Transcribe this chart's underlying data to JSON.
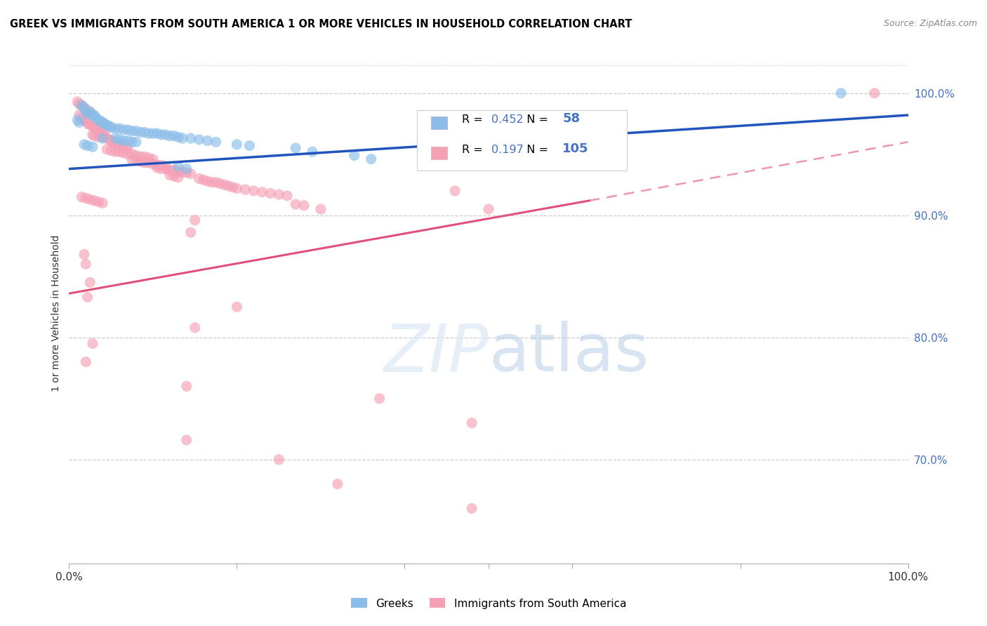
{
  "title": "GREEK VS IMMIGRANTS FROM SOUTH AMERICA 1 OR MORE VEHICLES IN HOUSEHOLD CORRELATION CHART",
  "source": "Source: ZipAtlas.com",
  "ylabel": "1 or more Vehicles in Household",
  "ytick_labels": [
    "100.0%",
    "90.0%",
    "80.0%",
    "70.0%"
  ],
  "ytick_values": [
    1.0,
    0.9,
    0.8,
    0.7
  ],
  "xlim": [
    0.0,
    1.0
  ],
  "ylim": [
    0.615,
    1.025
  ],
  "legend_label_greek": "Greeks",
  "legend_label_sa": "Immigrants from South America",
  "r_greek": 0.452,
  "n_greek": 58,
  "r_sa": 0.197,
  "n_sa": 105,
  "greek_color": "#8BBDE8",
  "sa_color": "#F4A0B5",
  "greek_line_color": "#2255BB",
  "sa_line_color": "#E0507A",
  "greek_line": [
    0.0,
    0.938,
    1.0,
    0.982
  ],
  "sa_line_solid": [
    0.0,
    0.836,
    0.62,
    0.912
  ],
  "sa_line_dash": [
    0.62,
    0.912,
    1.0,
    0.96
  ],
  "greek_scatter": [
    [
      0.015,
      0.99
    ],
    [
      0.018,
      0.988
    ],
    [
      0.02,
      0.985
    ],
    [
      0.022,
      0.983
    ],
    [
      0.025,
      0.985
    ],
    [
      0.028,
      0.982
    ],
    [
      0.03,
      0.982
    ],
    [
      0.032,
      0.98
    ],
    [
      0.035,
      0.978
    ],
    [
      0.01,
      0.978
    ],
    [
      0.012,
      0.976
    ],
    [
      0.038,
      0.977
    ],
    [
      0.04,
      0.976
    ],
    [
      0.042,
      0.975
    ],
    [
      0.045,
      0.974
    ],
    [
      0.048,
      0.973
    ],
    [
      0.05,
      0.972
    ],
    [
      0.055,
      0.971
    ],
    [
      0.06,
      0.971
    ],
    [
      0.065,
      0.97
    ],
    [
      0.07,
      0.97
    ],
    [
      0.075,
      0.969
    ],
    [
      0.08,
      0.969
    ],
    [
      0.085,
      0.968
    ],
    [
      0.09,
      0.968
    ],
    [
      0.095,
      0.967
    ],
    [
      0.1,
      0.967
    ],
    [
      0.105,
      0.967
    ],
    [
      0.11,
      0.966
    ],
    [
      0.115,
      0.966
    ],
    [
      0.12,
      0.965
    ],
    [
      0.125,
      0.965
    ],
    [
      0.04,
      0.963
    ],
    [
      0.055,
      0.963
    ],
    [
      0.06,
      0.962
    ],
    [
      0.065,
      0.961
    ],
    [
      0.07,
      0.961
    ],
    [
      0.075,
      0.96
    ],
    [
      0.08,
      0.96
    ],
    [
      0.13,
      0.964
    ],
    [
      0.135,
      0.963
    ],
    [
      0.145,
      0.963
    ],
    [
      0.155,
      0.962
    ],
    [
      0.165,
      0.961
    ],
    [
      0.175,
      0.96
    ],
    [
      0.018,
      0.958
    ],
    [
      0.022,
      0.957
    ],
    [
      0.028,
      0.956
    ],
    [
      0.2,
      0.958
    ],
    [
      0.215,
      0.957
    ],
    [
      0.27,
      0.955
    ],
    [
      0.29,
      0.952
    ],
    [
      0.34,
      0.949
    ],
    [
      0.36,
      0.946
    ],
    [
      0.13,
      0.94
    ],
    [
      0.14,
      0.938
    ],
    [
      0.92,
      1.0
    ]
  ],
  "sa_scatter": [
    [
      0.01,
      0.993
    ],
    [
      0.012,
      0.991
    ],
    [
      0.015,
      0.99
    ],
    [
      0.018,
      0.988
    ],
    [
      0.02,
      0.987
    ],
    [
      0.022,
      0.985
    ],
    [
      0.025,
      0.984
    ],
    [
      0.012,
      0.982
    ],
    [
      0.015,
      0.98
    ],
    [
      0.018,
      0.978
    ],
    [
      0.02,
      0.977
    ],
    [
      0.022,
      0.975
    ],
    [
      0.025,
      0.974
    ],
    [
      0.028,
      0.973
    ],
    [
      0.03,
      0.972
    ],
    [
      0.032,
      0.971
    ],
    [
      0.035,
      0.97
    ],
    [
      0.038,
      0.969
    ],
    [
      0.04,
      0.968
    ],
    [
      0.042,
      0.967
    ],
    [
      0.028,
      0.966
    ],
    [
      0.03,
      0.965
    ],
    [
      0.035,
      0.964
    ],
    [
      0.04,
      0.964
    ],
    [
      0.045,
      0.963
    ],
    [
      0.048,
      0.962
    ],
    [
      0.05,
      0.961
    ],
    [
      0.052,
      0.96
    ],
    [
      0.055,
      0.959
    ],
    [
      0.058,
      0.959
    ],
    [
      0.06,
      0.958
    ],
    [
      0.062,
      0.957
    ],
    [
      0.065,
      0.957
    ],
    [
      0.068,
      0.956
    ],
    [
      0.07,
      0.955
    ],
    [
      0.045,
      0.954
    ],
    [
      0.05,
      0.953
    ],
    [
      0.055,
      0.952
    ],
    [
      0.06,
      0.952
    ],
    [
      0.065,
      0.951
    ],
    [
      0.07,
      0.95
    ],
    [
      0.075,
      0.95
    ],
    [
      0.08,
      0.949
    ],
    [
      0.085,
      0.948
    ],
    [
      0.09,
      0.948
    ],
    [
      0.095,
      0.947
    ],
    [
      0.1,
      0.946
    ],
    [
      0.075,
      0.945
    ],
    [
      0.08,
      0.945
    ],
    [
      0.085,
      0.944
    ],
    [
      0.09,
      0.943
    ],
    [
      0.095,
      0.943
    ],
    [
      0.1,
      0.942
    ],
    [
      0.105,
      0.941
    ],
    [
      0.11,
      0.941
    ],
    [
      0.115,
      0.94
    ],
    [
      0.105,
      0.939
    ],
    [
      0.11,
      0.938
    ],
    [
      0.115,
      0.938
    ],
    [
      0.12,
      0.937
    ],
    [
      0.125,
      0.937
    ],
    [
      0.13,
      0.936
    ],
    [
      0.135,
      0.935
    ],
    [
      0.14,
      0.935
    ],
    [
      0.145,
      0.934
    ],
    [
      0.12,
      0.933
    ],
    [
      0.125,
      0.932
    ],
    [
      0.13,
      0.931
    ],
    [
      0.155,
      0.93
    ],
    [
      0.16,
      0.929
    ],
    [
      0.165,
      0.928
    ],
    [
      0.17,
      0.927
    ],
    [
      0.175,
      0.927
    ],
    [
      0.18,
      0.926
    ],
    [
      0.185,
      0.925
    ],
    [
      0.19,
      0.924
    ],
    [
      0.195,
      0.923
    ],
    [
      0.2,
      0.922
    ],
    [
      0.21,
      0.921
    ],
    [
      0.22,
      0.92
    ],
    [
      0.23,
      0.919
    ],
    [
      0.24,
      0.918
    ],
    [
      0.25,
      0.917
    ],
    [
      0.26,
      0.916
    ],
    [
      0.015,
      0.915
    ],
    [
      0.02,
      0.914
    ],
    [
      0.025,
      0.913
    ],
    [
      0.03,
      0.912
    ],
    [
      0.035,
      0.911
    ],
    [
      0.04,
      0.91
    ],
    [
      0.27,
      0.909
    ],
    [
      0.28,
      0.908
    ],
    [
      0.3,
      0.905
    ],
    [
      0.46,
      0.92
    ],
    [
      0.5,
      0.905
    ],
    [
      0.15,
      0.896
    ],
    [
      0.145,
      0.886
    ],
    [
      0.018,
      0.868
    ],
    [
      0.02,
      0.86
    ],
    [
      0.025,
      0.845
    ],
    [
      0.022,
      0.833
    ],
    [
      0.2,
      0.825
    ],
    [
      0.15,
      0.808
    ],
    [
      0.028,
      0.795
    ],
    [
      0.02,
      0.78
    ],
    [
      0.14,
      0.76
    ],
    [
      0.37,
      0.75
    ],
    [
      0.48,
      0.73
    ],
    [
      0.14,
      0.716
    ],
    [
      0.25,
      0.7
    ],
    [
      0.32,
      0.68
    ],
    [
      0.48,
      0.66
    ],
    [
      0.96,
      1.0
    ]
  ]
}
